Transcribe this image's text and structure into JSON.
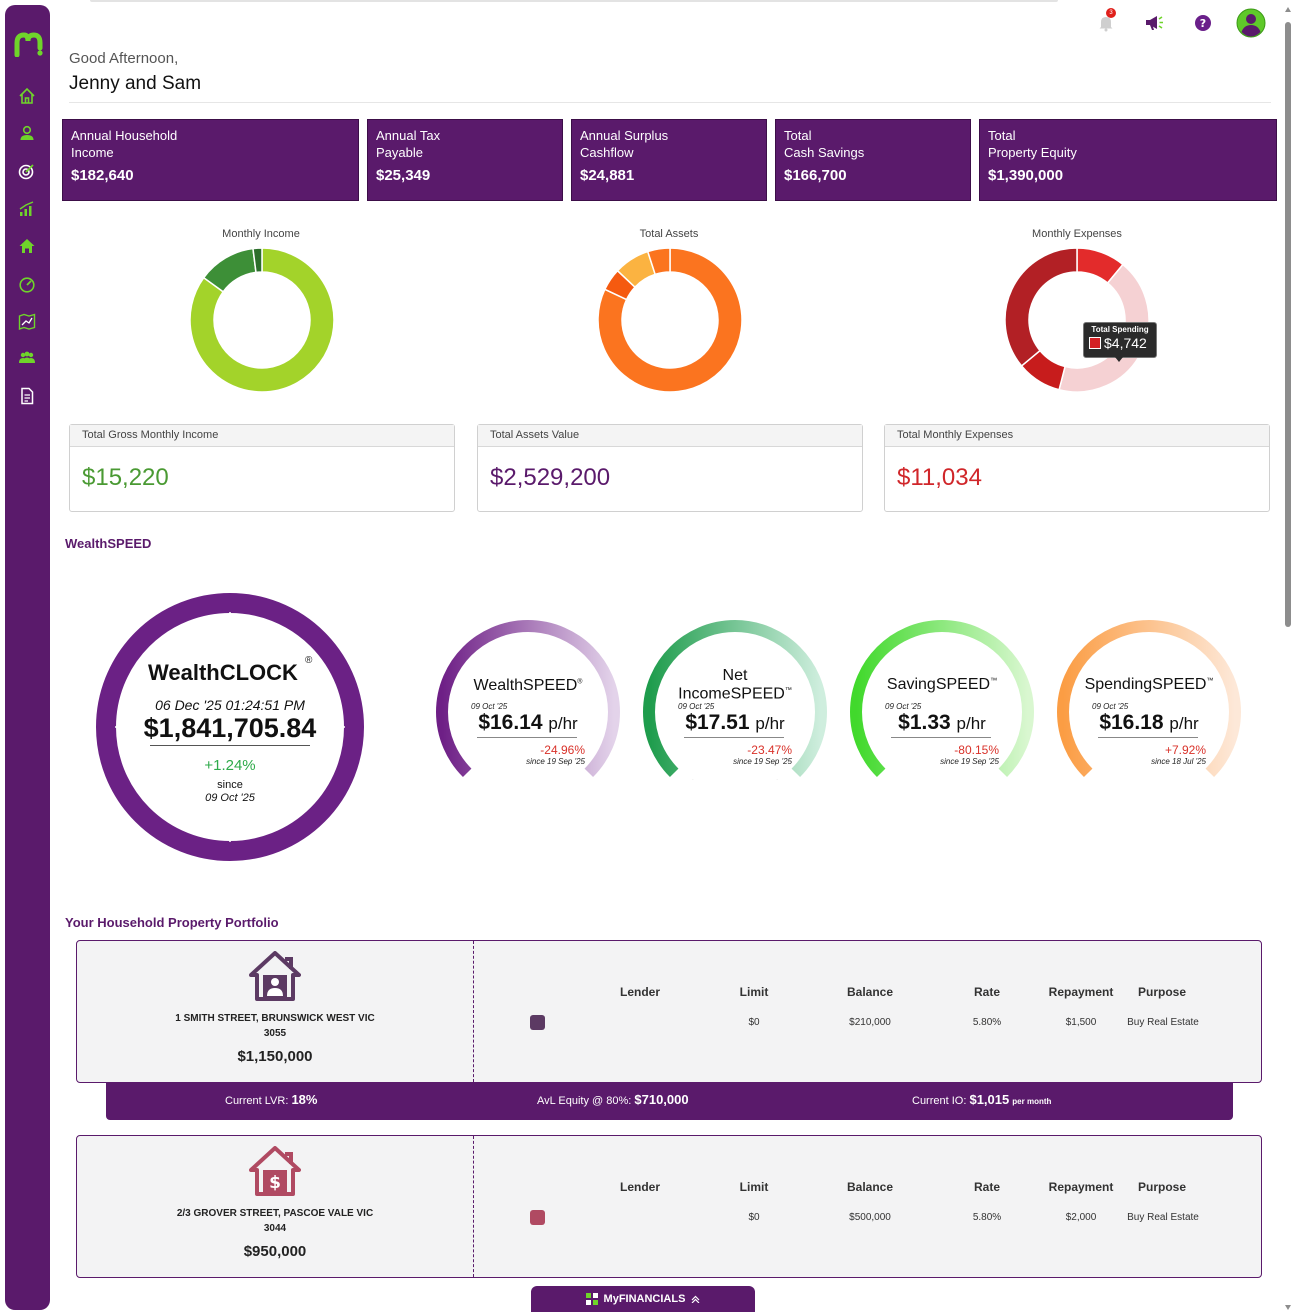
{
  "header": {
    "greeting": "Good Afternoon,",
    "names": "Jenny and Sam",
    "notification_count": "3"
  },
  "summary_cards": [
    {
      "label": "Annual Household\nIncome",
      "value": "$182,640"
    },
    {
      "label": "Annual Tax\nPayable",
      "value": "$25,349"
    },
    {
      "label": "Annual Surplus\nCashflow",
      "value": "$24,881"
    },
    {
      "label": "Total\nCash Savings",
      "value": "$166,700"
    },
    {
      "label": "Total\nProperty Equity",
      "value": "$1,390,000"
    }
  ],
  "charts": {
    "income": {
      "title": "Monthly Income"
    },
    "assets": {
      "title": "Total Assets"
    },
    "expenses": {
      "title": "Monthly Expenses"
    },
    "tooltip": {
      "label": "Total Spending",
      "value": "$4,742"
    }
  },
  "chart_data": [
    {
      "type": "pie",
      "title": "Monthly Income",
      "values": [
        85,
        13,
        2
      ],
      "colors": [
        "#a3d32a",
        "#3d8f37",
        "#2c6e2b"
      ]
    },
    {
      "type": "pie",
      "title": "Total Assets",
      "values": [
        82,
        5,
        8,
        5
      ],
      "colors": [
        "#fb741f",
        "#f55a10",
        "#fbb341",
        "#fb741f"
      ]
    },
    {
      "type": "pie",
      "title": "Monthly Expenses",
      "values": [
        11,
        43,
        10,
        36
      ],
      "colors": [
        "#e32b2b",
        "#f5d1d3",
        "#c71c1c",
        "#b22025"
      ]
    }
  ],
  "totals": [
    {
      "label": "Total Gross Monthly Income",
      "value": "$15,220",
      "color": "#4a9a33"
    },
    {
      "label": "Total Assets Value",
      "value": "$2,529,200",
      "color": "#5a1a6b"
    },
    {
      "label": "Total Monthly Expenses",
      "value": "$11,034",
      "color": "#d0262a"
    }
  ],
  "wealthspeed": {
    "section_title": "WealthSPEED",
    "clock": {
      "title": "WealthCLOCK",
      "mark": "®",
      "datetime": "06 Dec '25 01:24:51 PM",
      "amount": "$1,841,705.84",
      "change": "+1.24%",
      "since_label": "since",
      "since_date": "09 Oct '25"
    },
    "gauges": [
      {
        "name1": "",
        "name2": "WealthSPEED",
        "mark": "®",
        "date": "09 Oct '25",
        "speed": "$16.14",
        "unit": "p/hr",
        "change": "-24.96%",
        "since": "since 19 Sep '25",
        "fill": 0.78
      },
      {
        "name1": "Net",
        "name2": "IncomeSPEED",
        "mark": "™",
        "date": "09 Oct '25",
        "speed": "$17.51",
        "unit": "p/hr",
        "change": "-23.47%",
        "since": "since 19 Sep '25",
        "fill": 0.78
      },
      {
        "name1": "",
        "name2": "SavingSPEED",
        "mark": "™",
        "date": "09 Oct '25",
        "speed": "$1.33",
        "unit": "p/hr",
        "change": "-80.15%",
        "since": "since 19 Sep '25",
        "fill": 0.78
      },
      {
        "name1": "",
        "name2": "SpendingSPEED",
        "mark": "™",
        "date": "09 Oct '25",
        "speed": "$16.18",
        "unit": "p/hr",
        "change": "+7.92%",
        "since": "since 18 Jul '25",
        "fill": 0.78
      }
    ]
  },
  "portfolio": {
    "section_title": "Your Household Property Portfolio",
    "columns": [
      "Lender",
      "Limit",
      "Balance",
      "Rate",
      "Repayment",
      "Purpose"
    ],
    "properties": [
      {
        "address_line1": "1 SMITH STREET, BRUNSWICK WEST VIC",
        "address_line2": "3055",
        "value": "$1,150,000",
        "icon": "house-person-icon",
        "color": "#5c3a63",
        "loan": {
          "lender": "",
          "limit": "$0",
          "balance": "$210,000",
          "rate": "5.80%",
          "repayment": "$1,500",
          "purpose": "Buy Real Estate"
        }
      },
      {
        "address_line1": "2/3 GROVER STREET, PASCOE VALE VIC",
        "address_line2": "3044",
        "value": "$950,000",
        "icon": "house-dollar-icon",
        "color": "#b04a62",
        "loan": {
          "lender": "",
          "limit": "$0",
          "balance": "$500,000",
          "rate": "5.80%",
          "repayment": "$2,000",
          "purpose": "Buy Real Estate"
        }
      }
    ],
    "lvr_bar": {
      "lvr_label": "Current LVR:",
      "lvr_value": "18%",
      "equity_label": "AvL Equity @ 80%:",
      "equity_value": "$710,000",
      "io_label": "Current IO:",
      "io_value": "$1,015",
      "io_unit": "per month"
    }
  },
  "footer": {
    "tab_label": "MyFINANCIALS"
  }
}
